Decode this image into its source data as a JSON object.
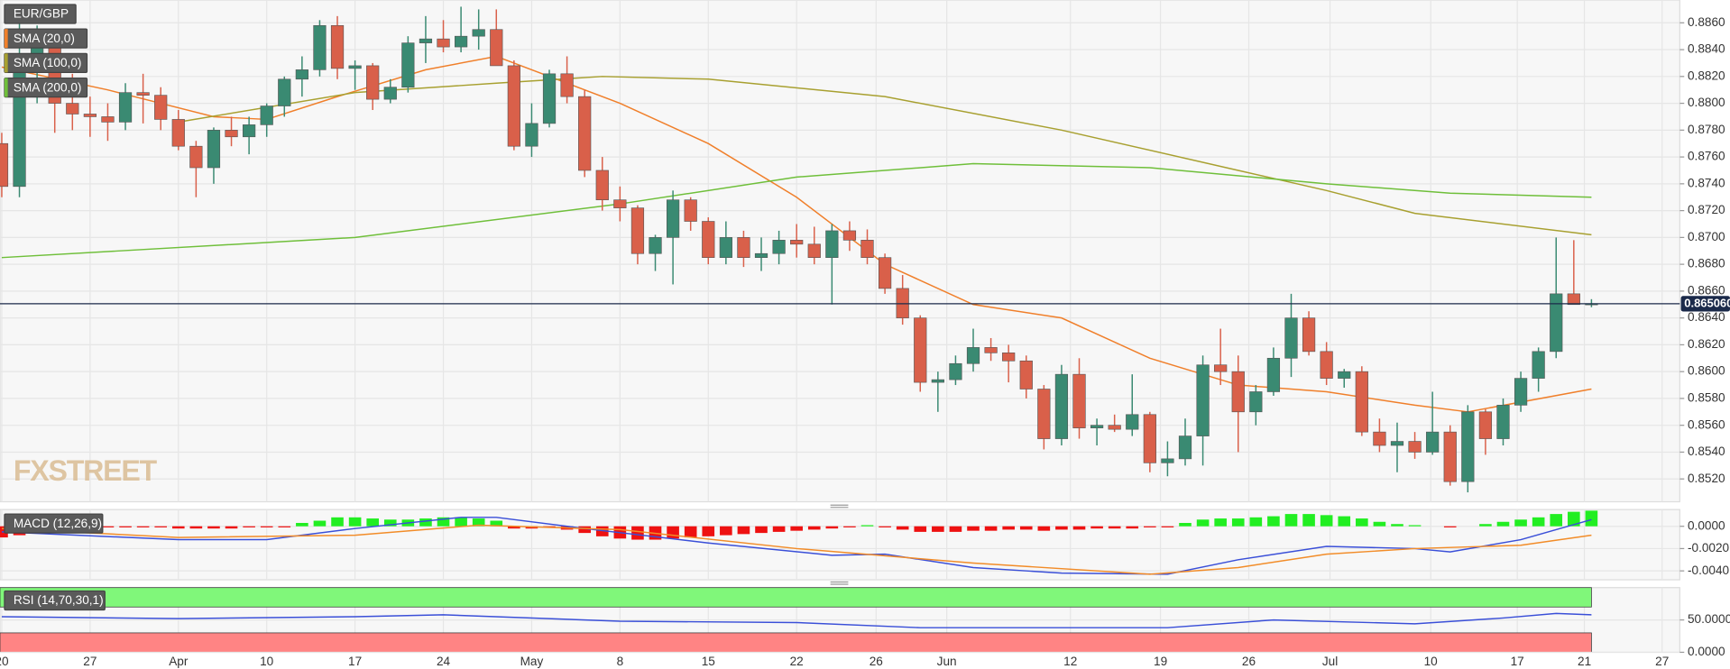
{
  "chart_data": [
    {
      "type": "candlestick",
      "title": "EUR/GBP",
      "watermark": "FXSTREET",
      "up_color": "#3a8a72",
      "down_color": "#d9604a",
      "grid": true,
      "open": [
        0.877,
        0.8738,
        0.883,
        0.8842,
        0.88,
        0.8792,
        0.879,
        0.8786,
        0.8808,
        0.8806,
        0.8788,
        0.8768,
        0.8752,
        0.878,
        0.8775,
        0.8784,
        0.8798,
        0.8818,
        0.8825,
        0.8858,
        0.8826,
        0.8828,
        0.8803,
        0.8812,
        0.8845,
        0.8848,
        0.8842,
        0.885,
        0.8855,
        0.8828,
        0.8768,
        0.8785,
        0.8822,
        0.8805,
        0.875,
        0.8728,
        0.8722,
        0.8688,
        0.87,
        0.8728,
        0.8712,
        0.8685,
        0.87,
        0.8685,
        0.8688,
        0.8698,
        0.8695,
        0.8685,
        0.8705,
        0.8698,
        0.8685,
        0.8662,
        0.864,
        0.8592,
        0.8594,
        0.8606,
        0.8618,
        0.8614,
        0.8608,
        0.8587,
        0.855,
        0.8598,
        0.8558,
        0.856,
        0.8557,
        0.8568,
        0.8532,
        0.8535,
        0.8552,
        0.8605,
        0.86,
        0.857,
        0.8585,
        0.861,
        0.864,
        0.8615,
        0.8595,
        0.86,
        0.8555,
        0.8545,
        0.8548,
        0.854,
        0.8555,
        0.8518,
        0.857,
        0.855,
        0.8575,
        0.8595,
        0.8615,
        0.8658,
        0.865
      ],
      "high": [
        0.8778,
        0.886,
        0.8858,
        0.885,
        0.8822,
        0.8805,
        0.88,
        0.8815,
        0.8822,
        0.8812,
        0.8795,
        0.8772,
        0.8782,
        0.879,
        0.879,
        0.88,
        0.882,
        0.8835,
        0.8862,
        0.8865,
        0.8832,
        0.883,
        0.8818,
        0.885,
        0.8865,
        0.8862,
        0.8872,
        0.887,
        0.887,
        0.8832,
        0.88,
        0.8825,
        0.8835,
        0.881,
        0.876,
        0.8738,
        0.8724,
        0.8702,
        0.8735,
        0.873,
        0.8715,
        0.8712,
        0.8705,
        0.87,
        0.8705,
        0.871,
        0.8708,
        0.871,
        0.8712,
        0.8706,
        0.8688,
        0.8672,
        0.8642,
        0.86,
        0.8612,
        0.8632,
        0.8625,
        0.862,
        0.8612,
        0.859,
        0.8605,
        0.861,
        0.8565,
        0.8568,
        0.8598,
        0.857,
        0.8548,
        0.8565,
        0.8612,
        0.8632,
        0.8612,
        0.859,
        0.8618,
        0.8658,
        0.8645,
        0.8622,
        0.8602,
        0.8604,
        0.8565,
        0.8562,
        0.8555,
        0.8585,
        0.856,
        0.8575,
        0.8572,
        0.858,
        0.86,
        0.8618,
        0.87,
        0.8698,
        0.8654
      ],
      "low": [
        0.873,
        0.873,
        0.88,
        0.8778,
        0.878,
        0.8775,
        0.8772,
        0.878,
        0.8785,
        0.878,
        0.8765,
        0.873,
        0.874,
        0.8768,
        0.8762,
        0.8775,
        0.879,
        0.8805,
        0.882,
        0.8818,
        0.881,
        0.8795,
        0.88,
        0.8808,
        0.883,
        0.8838,
        0.8838,
        0.884,
        0.883,
        0.8765,
        0.876,
        0.8782,
        0.88,
        0.8745,
        0.872,
        0.8712,
        0.868,
        0.8675,
        0.8665,
        0.8705,
        0.868,
        0.868,
        0.8678,
        0.8675,
        0.868,
        0.8685,
        0.868,
        0.865,
        0.869,
        0.868,
        0.8658,
        0.8635,
        0.8585,
        0.857,
        0.859,
        0.86,
        0.8608,
        0.8592,
        0.858,
        0.8542,
        0.8545,
        0.855,
        0.8545,
        0.8555,
        0.8552,
        0.8525,
        0.8522,
        0.853,
        0.853,
        0.859,
        0.854,
        0.856,
        0.8582,
        0.8596,
        0.8612,
        0.859,
        0.8588,
        0.8552,
        0.854,
        0.8525,
        0.8535,
        0.8538,
        0.8515,
        0.851,
        0.8538,
        0.8545,
        0.857,
        0.8585,
        0.861,
        0.865,
        0.8648
      ],
      "close": [
        0.8738,
        0.883,
        0.8842,
        0.88,
        0.8792,
        0.879,
        0.8786,
        0.8808,
        0.8806,
        0.8788,
        0.8768,
        0.8752,
        0.878,
        0.8775,
        0.8784,
        0.8798,
        0.8818,
        0.8825,
        0.8858,
        0.8826,
        0.8828,
        0.8803,
        0.8812,
        0.8845,
        0.8848,
        0.8842,
        0.885,
        0.8855,
        0.8828,
        0.8768,
        0.8785,
        0.8822,
        0.8805,
        0.875,
        0.8728,
        0.8722,
        0.8688,
        0.87,
        0.8728,
        0.8712,
        0.8685,
        0.87,
        0.8685,
        0.8688,
        0.8698,
        0.8695,
        0.8685,
        0.8705,
        0.8698,
        0.8685,
        0.8662,
        0.864,
        0.8592,
        0.8594,
        0.8606,
        0.8618,
        0.8614,
        0.8608,
        0.8587,
        0.855,
        0.8598,
        0.8558,
        0.856,
        0.8557,
        0.8568,
        0.8532,
        0.8535,
        0.8552,
        0.8605,
        0.86,
        0.857,
        0.8585,
        0.861,
        0.864,
        0.8615,
        0.8595,
        0.86,
        0.8555,
        0.8545,
        0.8548,
        0.854,
        0.8555,
        0.8518,
        0.857,
        0.855,
        0.8575,
        0.8595,
        0.8615,
        0.8658,
        0.865,
        0.86506
      ],
      "series": [
        {
          "name": "SMA (20,0)",
          "color": "#f07f2a",
          "x": [
            0,
            6,
            12,
            15,
            19,
            24,
            28,
            31,
            35,
            40,
            45,
            50,
            55,
            60,
            65,
            70,
            75,
            80,
            83,
            90
          ],
          "values": [
            0.8827,
            0.881,
            0.879,
            0.8788,
            0.8805,
            0.8825,
            0.8835,
            0.882,
            0.88,
            0.877,
            0.873,
            0.868,
            0.865,
            0.864,
            0.861,
            0.859,
            0.8585,
            0.8575,
            0.857,
            0.8587
          ]
        },
        {
          "name": "SMA (100,0)",
          "color": "#a8a030",
          "x": [
            10,
            20,
            28,
            34,
            40,
            50,
            60,
            70,
            75,
            80,
            90
          ],
          "values": [
            0.8786,
            0.8808,
            0.8815,
            0.882,
            0.8818,
            0.8805,
            0.878,
            0.875,
            0.8735,
            0.8718,
            0.8702
          ]
        },
        {
          "name": "SMA (200,0)",
          "color": "#6fbf3a",
          "x": [
            0,
            20,
            35,
            45,
            55,
            65,
            75,
            82,
            90
          ],
          "values": [
            0.8685,
            0.87,
            0.8725,
            0.8745,
            0.8755,
            0.8752,
            0.874,
            0.8733,
            0.873
          ]
        }
      ],
      "last_price": {
        "value": 0.86506,
        "label": "0.865060"
      },
      "xlim": [
        -0.1,
        95
      ],
      "ylim": [
        0.8503,
        0.8877
      ],
      "yticks": [
        {
          "value": 0.852,
          "label": "0.8520"
        },
        {
          "value": 0.854,
          "label": "0.8540"
        },
        {
          "value": 0.856,
          "label": "0.8560"
        },
        {
          "value": 0.858,
          "label": "0.8580"
        },
        {
          "value": 0.86,
          "label": "0.8600"
        },
        {
          "value": 0.862,
          "label": "0.8620"
        },
        {
          "value": 0.864,
          "label": "0.8640"
        },
        {
          "value": 0.866,
          "label": "0.8660"
        },
        {
          "value": 0.868,
          "label": "0.8680"
        },
        {
          "value": 0.87,
          "label": "0.8700"
        },
        {
          "value": 0.872,
          "label": "0.8720"
        },
        {
          "value": 0.874,
          "label": "0.8740"
        },
        {
          "value": 0.876,
          "label": "0.8760"
        },
        {
          "value": 0.878,
          "label": "0.8780"
        },
        {
          "value": 0.88,
          "label": "0.8800"
        },
        {
          "value": 0.882,
          "label": "0.8820"
        },
        {
          "value": 0.884,
          "label": "0.8840"
        },
        {
          "value": 0.886,
          "label": "0.8860"
        }
      ],
      "xticks": [
        {
          "value": 0,
          "label": "20"
        },
        {
          "value": 5,
          "label": "27"
        },
        {
          "value": 10,
          "label": "Apr"
        },
        {
          "value": 15,
          "label": "10"
        },
        {
          "value": 20,
          "label": "17"
        },
        {
          "value": 25,
          "label": "24"
        },
        {
          "value": 30,
          "label": "May"
        },
        {
          "value": 35,
          "label": "8"
        },
        {
          "value": 40,
          "label": "15"
        },
        {
          "value": 45,
          "label": "22"
        },
        {
          "value": 49.5,
          "label": "26"
        },
        {
          "value": 53.5,
          "label": "Jun"
        },
        {
          "value": 60.5,
          "label": "12"
        },
        {
          "value": 65.6,
          "label": "19"
        },
        {
          "value": 70.6,
          "label": "26"
        },
        {
          "value": 75.2,
          "label": "Jul"
        },
        {
          "value": 80.9,
          "label": "10"
        },
        {
          "value": 85.8,
          "label": "17"
        },
        {
          "value": 89.6,
          "label": "21"
        },
        {
          "value": 94,
          "label": "27"
        }
      ]
    },
    {
      "type": "macd",
      "title": "MACD (12,26,9)",
      "pos_color": "#22ee22",
      "neg_color": "#ee1111",
      "histogram": [
        -0.001,
        -0.0008,
        -0.0002,
        -0.0002,
        -0.0002,
        -0.0002,
        -0.0001,
        -0.0001,
        -0.0001,
        -0.0001,
        -0.0002,
        -0.0002,
        -0.0002,
        -0.0002,
        -0.0001,
        -0.0001,
        -0.0001,
        0.0003,
        0.0005,
        0.0008,
        0.0008,
        0.0007,
        0.0006,
        0.0006,
        0.0007,
        0.0008,
        0.0008,
        0.0007,
        0.0005,
        -0.0002,
        -0.0002,
        -0.0001,
        -0.0003,
        -0.0006,
        -0.0009,
        -0.0011,
        -0.0012,
        -0.0012,
        -0.0011,
        -0.001,
        -0.0009,
        -0.0008,
        -0.0007,
        -0.0006,
        -0.0005,
        -0.0004,
        -0.0003,
        -0.0002,
        -0.0001,
        0.0001,
        -0.0001,
        -0.0003,
        -0.0005,
        -0.0005,
        -0.0005,
        -0.0004,
        -0.0004,
        -0.0003,
        -0.0003,
        -0.0004,
        -0.0003,
        -0.0003,
        -0.0002,
        -0.0002,
        -0.0002,
        -0.0001,
        -0.0001,
        0.0003,
        0.0006,
        0.0007,
        0.0007,
        0.0008,
        0.0009,
        0.0011,
        0.0011,
        0.001,
        0.0009,
        0.0007,
        0.0004,
        0.0002,
        0.0001,
        0.0,
        -0.0001,
        0.0,
        0.0002,
        0.0004,
        0.0006,
        0.0008,
        0.0011,
        0.0013,
        0.0014
      ],
      "series": [
        {
          "color": "#3a4fd8",
          "x": [
            0,
            10,
            15,
            20,
            26,
            28,
            33,
            40,
            47,
            50,
            55,
            60,
            66,
            70,
            75,
            80,
            82,
            86,
            90
          ],
          "values": [
            -0.0005,
            -0.0012,
            -0.0012,
            -0.0002,
            0.0008,
            0.0008,
            -0.0002,
            -0.0015,
            -0.0026,
            -0.0025,
            -0.0037,
            -0.0042,
            -0.0043,
            -0.003,
            -0.0018,
            -0.002,
            -0.0023,
            -0.0012,
            0.0006
          ]
        },
        {
          "color": "#f28c28",
          "x": [
            0,
            10,
            20,
            27,
            35,
            45,
            55,
            65,
            70,
            75,
            80,
            86,
            90
          ],
          "values": [
            -0.0002,
            -0.001,
            -0.0008,
            0.0001,
            -0.0003,
            -0.002,
            -0.0033,
            -0.0043,
            -0.0037,
            -0.0025,
            -0.002,
            -0.0017,
            -0.0008
          ]
        }
      ],
      "ylim": [
        -0.0048,
        0.0015
      ],
      "yticks": [
        {
          "value": 0,
          "label": "0.0000"
        },
        {
          "value": -0.002,
          "label": "-0.0020"
        },
        {
          "value": -0.004,
          "label": "-0.0040"
        }
      ]
    },
    {
      "type": "rsi",
      "title": "RSI (14,70,30,1)",
      "upper": 70,
      "lower": 30,
      "upper_color": "#80f77a",
      "lower_color": "#ff8484",
      "series": [
        {
          "color": "#3a4fd8",
          "x": [
            0,
            10,
            20,
            25,
            35,
            45,
            52,
            60,
            66,
            72,
            80,
            85,
            88,
            90
          ],
          "values": [
            55,
            52,
            55,
            58,
            48,
            46,
            38,
            38,
            38,
            50,
            44,
            53,
            60,
            58
          ]
        }
      ],
      "ylim": [
        0,
        100
      ],
      "yticks": [
        {
          "value": 50,
          "label": "50.0000"
        },
        {
          "value": 0,
          "label": "0.0000"
        }
      ]
    }
  ]
}
